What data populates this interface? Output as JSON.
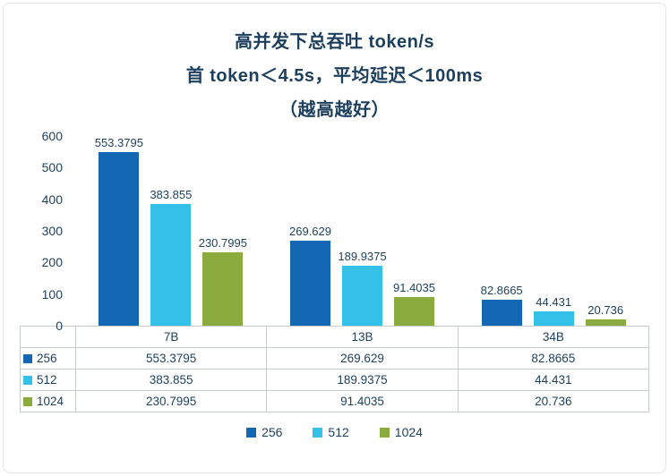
{
  "title": {
    "line1": "高并发下总吞吐 token/s",
    "line2": "首 token＜4.5s，平均延迟＜100ms",
    "line3": "（越高越好）"
  },
  "colors": {
    "series_256": "#1467b2",
    "series_512": "#35c0e8",
    "series_1024": "#8cab3f",
    "text": "#1d3f5e",
    "table_border": "#c7ccd1"
  },
  "chart_data": {
    "type": "bar",
    "title": "高并发下总吞吐 token/s 首 token＜4.5s，平均延迟＜100ms （越高越好）",
    "categories": [
      "7B",
      "13B",
      "34B"
    ],
    "series": [
      {
        "name": "256",
        "color": "#1467b2",
        "values": [
          553.3795,
          269.629,
          82.8665
        ]
      },
      {
        "name": "512",
        "color": "#35c0e8",
        "values": [
          383.855,
          189.9375,
          44.431
        ]
      },
      {
        "name": "1024",
        "color": "#8cab3f",
        "values": [
          230.7995,
          91.4035,
          20.736
        ]
      }
    ],
    "xlabel": "",
    "ylabel": "",
    "ylim": [
      0,
      600
    ],
    "yticks": [
      0,
      100,
      200,
      300,
      400,
      500,
      600
    ],
    "grid": false,
    "value_labels": true,
    "legend_position": "bottom"
  },
  "table": {
    "header": [
      "",
      "7B",
      "13B",
      "34B"
    ],
    "rows": [
      {
        "label": "256",
        "values": [
          "553.3795",
          "269.629",
          "82.8665"
        ]
      },
      {
        "label": "512",
        "values": [
          "383.855",
          "189.9375",
          "44.431"
        ]
      },
      {
        "label": "1024",
        "values": [
          "230.7995",
          "91.4035",
          "20.736"
        ]
      }
    ]
  },
  "legend": {
    "items": [
      {
        "label": "256",
        "color": "#1467b2"
      },
      {
        "label": "512",
        "color": "#35c0e8"
      },
      {
        "label": "1024",
        "color": "#8cab3f"
      }
    ]
  }
}
